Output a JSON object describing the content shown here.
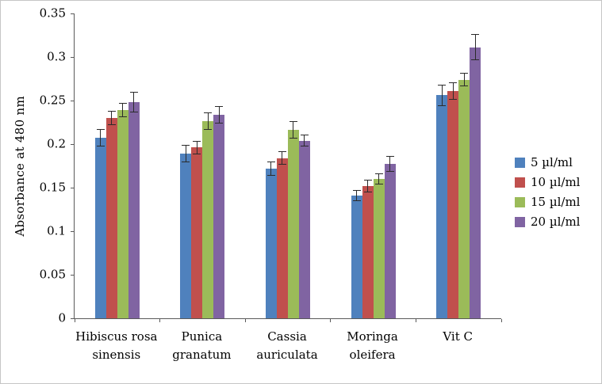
{
  "figure": {
    "background": "#ffffff",
    "border_color": "#c6c6c6"
  },
  "chart_data": {
    "type": "bar",
    "title": "",
    "ylabel": "Absorbance at 480 nm",
    "xlabel": "",
    "ylim": [
      0,
      0.35
    ],
    "yticks": [
      0,
      0.05,
      0.1,
      0.15,
      0.2,
      0.25,
      0.3,
      0.35
    ],
    "grid": false,
    "legend_position": "right",
    "axis_color": "#595959",
    "error_bar_color": "#2b2b2b",
    "categories": [
      "Hibiscus rosa\nsinensis",
      "Punica\ngranatum",
      "Cassia\nauriculata",
      "Moringa\noleifera",
      "Vit C"
    ],
    "series": [
      {
        "name": "5 µl/ml",
        "color": "#4F81BD",
        "values": [
          0.207,
          0.189,
          0.172,
          0.141,
          0.256
        ],
        "errors": [
          0.01,
          0.01,
          0.008,
          0.006,
          0.012
        ]
      },
      {
        "name": "10 µl/ml",
        "color": "#C0504D",
        "values": [
          0.23,
          0.196,
          0.184,
          0.152,
          0.261
        ],
        "errors": [
          0.008,
          0.008,
          0.008,
          0.007,
          0.01
        ]
      },
      {
        "name": "15 µl/ml",
        "color": "#9BBB59",
        "values": [
          0.239,
          0.226,
          0.216,
          0.16,
          0.274
        ],
        "errors": [
          0.008,
          0.01,
          0.01,
          0.006,
          0.008
        ]
      },
      {
        "name": "20 µl/ml",
        "color": "#8064A2",
        "values": [
          0.248,
          0.234,
          0.204,
          0.177,
          0.311
        ],
        "errors": [
          0.012,
          0.01,
          0.007,
          0.009,
          0.015
        ]
      }
    ]
  }
}
